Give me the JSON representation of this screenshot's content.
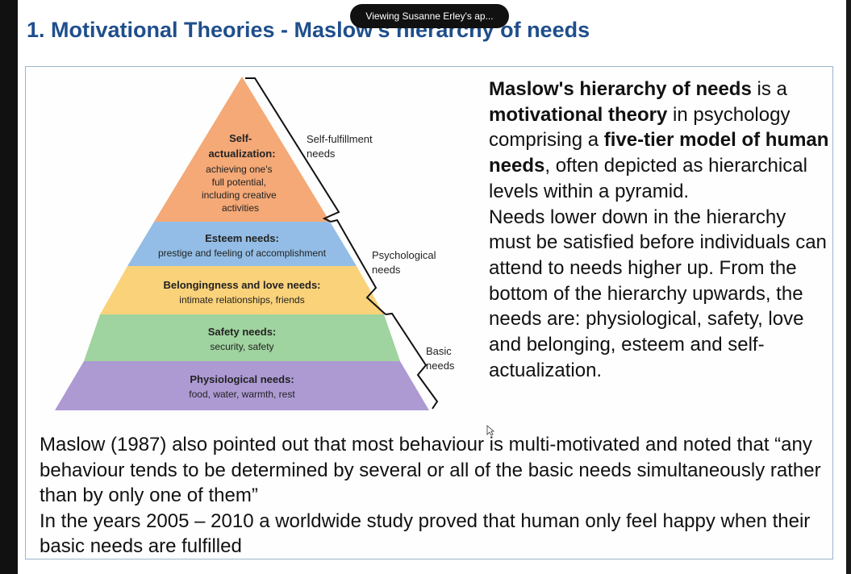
{
  "meeting_banner": "Viewing Susanne Erley's ap...",
  "slide": {
    "title": "1. Motivational Theories - Maslow's hierarchy of needs"
  },
  "pyramid": {
    "levels": [
      {
        "title_lines": [
          "Self-",
          "actualization:"
        ],
        "desc_lines": [
          "achieving one's",
          "full potential,",
          "including creative",
          "activities"
        ],
        "color": "#f4a977"
      },
      {
        "title_lines": [
          "Esteem needs:"
        ],
        "desc_lines": [
          "prestige and feeling of accomplishment"
        ],
        "color": "#93bde6"
      },
      {
        "title_lines": [
          "Belongingness and love needs:"
        ],
        "desc_lines": [
          "intimate relationships, friends"
        ],
        "color": "#fad27a"
      },
      {
        "title_lines": [
          "Safety needs:"
        ],
        "desc_lines": [
          "security, safety"
        ],
        "color": "#9fd39f"
      },
      {
        "title_lines": [
          "Physiological needs:"
        ],
        "desc_lines": [
          "food, water, warmth, rest"
        ],
        "color": "#ad9ad3"
      }
    ],
    "bracket_labels": [
      {
        "lines": [
          "Self-fulfillment",
          "needs"
        ]
      },
      {
        "lines": [
          "Psychological",
          "needs"
        ]
      },
      {
        "lines": [
          "Basic",
          "needs"
        ]
      }
    ]
  },
  "right_text": {
    "p1": [
      {
        "text": "Maslow's hierarchy of needs",
        "bold": true
      },
      {
        "text": " is a ",
        "bold": false
      },
      {
        "text": "motivational theory",
        "bold": true
      },
      {
        "text": " in psychology comprising a ",
        "bold": false
      },
      {
        "text": "five-tier model of human needs",
        "bold": true
      },
      {
        "text": ", often depicted as hierarchical levels within a pyramid.",
        "bold": false
      }
    ],
    "p2": "Needs lower down in the hierarchy must be satisfied before individuals can attend to needs higher up. From the bottom of the hierarchy upwards, the needs are: physiological, safety, love and belonging, esteem and self-actualization."
  },
  "bottom_text": {
    "p1": "Maslow (1987) also pointed out that most behaviour is multi-motivated and noted that “any behaviour tends to be determined by several or all of the basic needs simultaneously rather than by only one of them”",
    "p2": "In the years 2005 – 2010 a worldwide study proved that human only feel happy when their basic needs are fulfilled"
  }
}
